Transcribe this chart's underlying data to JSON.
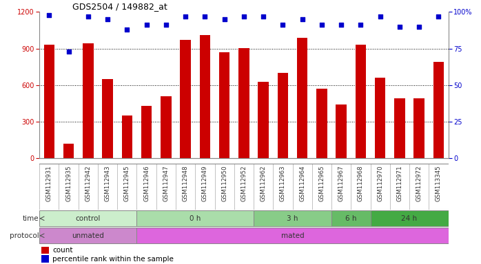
{
  "title": "GDS2504 / 149882_at",
  "samples": [
    "GSM112931",
    "GSM112935",
    "GSM112942",
    "GSM112943",
    "GSM112945",
    "GSM112946",
    "GSM112947",
    "GSM112948",
    "GSM112949",
    "GSM112950",
    "GSM112952",
    "GSM112962",
    "GSM112963",
    "GSM112964",
    "GSM112965",
    "GSM112967",
    "GSM112968",
    "GSM112970",
    "GSM112971",
    "GSM112972",
    "GSM113345"
  ],
  "counts": [
    930,
    120,
    940,
    650,
    350,
    430,
    510,
    970,
    1010,
    870,
    905,
    630,
    700,
    990,
    570,
    440,
    930,
    660,
    490,
    490,
    790
  ],
  "percentiles": [
    98,
    73,
    97,
    95,
    88,
    91,
    91,
    97,
    97,
    95,
    97,
    97,
    91,
    95,
    91,
    91,
    91,
    97,
    90,
    90,
    97
  ],
  "left_ylim": [
    0,
    1200
  ],
  "right_ylim": [
    0,
    100
  ],
  "left_yticks": [
    0,
    300,
    600,
    900,
    1200
  ],
  "right_yticks": [
    0,
    25,
    50,
    75,
    100
  ],
  "right_yticklabels": [
    "0",
    "25",
    "50",
    "75",
    "100%"
  ],
  "bar_color": "#cc0000",
  "dot_color": "#0000cc",
  "time_groups": [
    {
      "label": "control",
      "start": 0,
      "end": 5,
      "color": "#cceecc"
    },
    {
      "label": "0 h",
      "start": 5,
      "end": 11,
      "color": "#aaddaa"
    },
    {
      "label": "3 h",
      "start": 11,
      "end": 15,
      "color": "#88cc88"
    },
    {
      "label": "6 h",
      "start": 15,
      "end": 17,
      "color": "#66bb66"
    },
    {
      "label": "24 h",
      "start": 17,
      "end": 21,
      "color": "#44aa44"
    }
  ],
  "protocol_groups": [
    {
      "label": "unmated",
      "start": 0,
      "end": 5,
      "color": "#cc88cc"
    },
    {
      "label": "mated",
      "start": 5,
      "end": 21,
      "color": "#dd66dd"
    }
  ],
  "gridline_values": [
    300,
    600,
    900
  ],
  "xtick_bg": "#cccccc",
  "label_time": "time",
  "label_protocol": "protocol",
  "legend_count_label": "count",
  "legend_pct_label": "percentile rank within the sample"
}
